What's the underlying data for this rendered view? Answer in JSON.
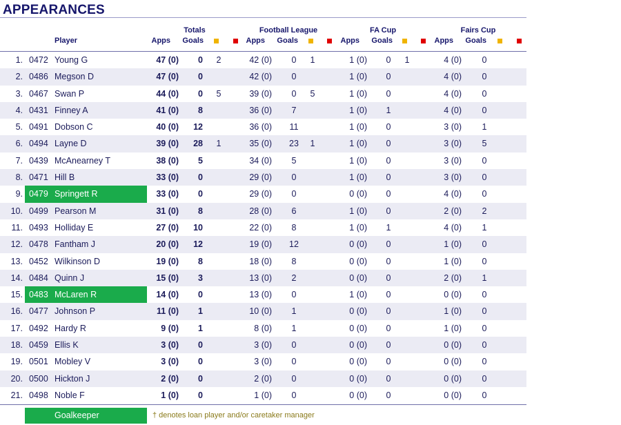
{
  "title": "APPEARANCES",
  "headers": {
    "player": "Player",
    "totals": "Totals",
    "football_league": "Football League",
    "fa_cup": "FA Cup",
    "fairs_cup": "Fairs Cup",
    "apps": "Apps",
    "goals": "Goals"
  },
  "colors": {
    "header_text": "#16166b",
    "yellow_card": "#f0b400",
    "red_card": "#e00000",
    "goalkeeper_highlight": "#1aab4b",
    "alt_row": "#ebebf4"
  },
  "columns": [
    "rank",
    "number",
    "player",
    "total_apps",
    "total_goals",
    "total_yellow",
    "total_red",
    "fl_apps",
    "fl_goals",
    "fl_yellow",
    "fl_red",
    "fac_apps",
    "fac_goals",
    "fac_yellow",
    "fac_red",
    "fc_apps",
    "fc_goals",
    "fc_yellow",
    "fc_red"
  ],
  "rows": [
    {
      "rank": "1.",
      "number": "0472",
      "player": "Young G",
      "goalkeeper": false,
      "total_apps": "47 (0)",
      "total_goals": "0",
      "total_yellow": "2",
      "total_red": "",
      "fl_apps": "42 (0)",
      "fl_goals": "0",
      "fl_yellow": "1",
      "fl_red": "",
      "fac_apps": "1 (0)",
      "fac_goals": "0",
      "fac_yellow": "1",
      "fac_red": "",
      "fc_apps": "4 (0)",
      "fc_goals": "0",
      "fc_yellow": "",
      "fc_red": ""
    },
    {
      "rank": "2.",
      "number": "0486",
      "player": "Megson D",
      "goalkeeper": false,
      "total_apps": "47 (0)",
      "total_goals": "0",
      "total_yellow": "",
      "total_red": "",
      "fl_apps": "42 (0)",
      "fl_goals": "0",
      "fl_yellow": "",
      "fl_red": "",
      "fac_apps": "1 (0)",
      "fac_goals": "0",
      "fac_yellow": "",
      "fac_red": "",
      "fc_apps": "4 (0)",
      "fc_goals": "0",
      "fc_yellow": "",
      "fc_red": ""
    },
    {
      "rank": "3.",
      "number": "0467",
      "player": "Swan P",
      "goalkeeper": false,
      "total_apps": "44 (0)",
      "total_goals": "0",
      "total_yellow": "5",
      "total_red": "",
      "fl_apps": "39 (0)",
      "fl_goals": "0",
      "fl_yellow": "5",
      "fl_red": "",
      "fac_apps": "1 (0)",
      "fac_goals": "0",
      "fac_yellow": "",
      "fac_red": "",
      "fc_apps": "4 (0)",
      "fc_goals": "0",
      "fc_yellow": "",
      "fc_red": ""
    },
    {
      "rank": "4.",
      "number": "0431",
      "player": "Finney A",
      "goalkeeper": false,
      "total_apps": "41 (0)",
      "total_goals": "8",
      "total_yellow": "",
      "total_red": "",
      "fl_apps": "36 (0)",
      "fl_goals": "7",
      "fl_yellow": "",
      "fl_red": "",
      "fac_apps": "1 (0)",
      "fac_goals": "1",
      "fac_yellow": "",
      "fac_red": "",
      "fc_apps": "4 (0)",
      "fc_goals": "0",
      "fc_yellow": "",
      "fc_red": ""
    },
    {
      "rank": "5.",
      "number": "0491",
      "player": "Dobson C",
      "goalkeeper": false,
      "total_apps": "40 (0)",
      "total_goals": "12",
      "total_yellow": "",
      "total_red": "",
      "fl_apps": "36 (0)",
      "fl_goals": "11",
      "fl_yellow": "",
      "fl_red": "",
      "fac_apps": "1 (0)",
      "fac_goals": "0",
      "fac_yellow": "",
      "fac_red": "",
      "fc_apps": "3 (0)",
      "fc_goals": "1",
      "fc_yellow": "",
      "fc_red": ""
    },
    {
      "rank": "6.",
      "number": "0494",
      "player": "Layne D",
      "goalkeeper": false,
      "total_apps": "39 (0)",
      "total_goals": "28",
      "total_yellow": "1",
      "total_red": "",
      "fl_apps": "35 (0)",
      "fl_goals": "23",
      "fl_yellow": "1",
      "fl_red": "",
      "fac_apps": "1 (0)",
      "fac_goals": "0",
      "fac_yellow": "",
      "fac_red": "",
      "fc_apps": "3 (0)",
      "fc_goals": "5",
      "fc_yellow": "",
      "fc_red": ""
    },
    {
      "rank": "7.",
      "number": "0439",
      "player": "McAnearney T",
      "goalkeeper": false,
      "total_apps": "38 (0)",
      "total_goals": "5",
      "total_yellow": "",
      "total_red": "",
      "fl_apps": "34 (0)",
      "fl_goals": "5",
      "fl_yellow": "",
      "fl_red": "",
      "fac_apps": "1 (0)",
      "fac_goals": "0",
      "fac_yellow": "",
      "fac_red": "",
      "fc_apps": "3 (0)",
      "fc_goals": "0",
      "fc_yellow": "",
      "fc_red": ""
    },
    {
      "rank": "8.",
      "number": "0471",
      "player": "Hill B",
      "goalkeeper": false,
      "total_apps": "33 (0)",
      "total_goals": "0",
      "total_yellow": "",
      "total_red": "",
      "fl_apps": "29 (0)",
      "fl_goals": "0",
      "fl_yellow": "",
      "fl_red": "",
      "fac_apps": "1 (0)",
      "fac_goals": "0",
      "fac_yellow": "",
      "fac_red": "",
      "fc_apps": "3 (0)",
      "fc_goals": "0",
      "fc_yellow": "",
      "fc_red": ""
    },
    {
      "rank": "9.",
      "number": "0479",
      "player": "Springett R",
      "goalkeeper": true,
      "total_apps": "33 (0)",
      "total_goals": "0",
      "total_yellow": "",
      "total_red": "",
      "fl_apps": "29 (0)",
      "fl_goals": "0",
      "fl_yellow": "",
      "fl_red": "",
      "fac_apps": "0 (0)",
      "fac_goals": "0",
      "fac_yellow": "",
      "fac_red": "",
      "fc_apps": "4 (0)",
      "fc_goals": "0",
      "fc_yellow": "",
      "fc_red": ""
    },
    {
      "rank": "10.",
      "number": "0499",
      "player": "Pearson M",
      "goalkeeper": false,
      "total_apps": "31 (0)",
      "total_goals": "8",
      "total_yellow": "",
      "total_red": "",
      "fl_apps": "28 (0)",
      "fl_goals": "6",
      "fl_yellow": "",
      "fl_red": "",
      "fac_apps": "1 (0)",
      "fac_goals": "0",
      "fac_yellow": "",
      "fac_red": "",
      "fc_apps": "2 (0)",
      "fc_goals": "2",
      "fc_yellow": "",
      "fc_red": ""
    },
    {
      "rank": "11.",
      "number": "0493",
      "player": "Holliday E",
      "goalkeeper": false,
      "total_apps": "27 (0)",
      "total_goals": "10",
      "total_yellow": "",
      "total_red": "",
      "fl_apps": "22 (0)",
      "fl_goals": "8",
      "fl_yellow": "",
      "fl_red": "",
      "fac_apps": "1 (0)",
      "fac_goals": "1",
      "fac_yellow": "",
      "fac_red": "",
      "fc_apps": "4 (0)",
      "fc_goals": "1",
      "fc_yellow": "",
      "fc_red": ""
    },
    {
      "rank": "12.",
      "number": "0478",
      "player": "Fantham J",
      "goalkeeper": false,
      "total_apps": "20 (0)",
      "total_goals": "12",
      "total_yellow": "",
      "total_red": "",
      "fl_apps": "19 (0)",
      "fl_goals": "12",
      "fl_yellow": "",
      "fl_red": "",
      "fac_apps": "0 (0)",
      "fac_goals": "0",
      "fac_yellow": "",
      "fac_red": "",
      "fc_apps": "1 (0)",
      "fc_goals": "0",
      "fc_yellow": "",
      "fc_red": ""
    },
    {
      "rank": "13.",
      "number": "0452",
      "player": "Wilkinson D",
      "goalkeeper": false,
      "total_apps": "19 (0)",
      "total_goals": "8",
      "total_yellow": "",
      "total_red": "",
      "fl_apps": "18 (0)",
      "fl_goals": "8",
      "fl_yellow": "",
      "fl_red": "",
      "fac_apps": "0 (0)",
      "fac_goals": "0",
      "fac_yellow": "",
      "fac_red": "",
      "fc_apps": "1 (0)",
      "fc_goals": "0",
      "fc_yellow": "",
      "fc_red": ""
    },
    {
      "rank": "14.",
      "number": "0484",
      "player": "Quinn J",
      "goalkeeper": false,
      "total_apps": "15 (0)",
      "total_goals": "3",
      "total_yellow": "",
      "total_red": "",
      "fl_apps": "13 (0)",
      "fl_goals": "2",
      "fl_yellow": "",
      "fl_red": "",
      "fac_apps": "0 (0)",
      "fac_goals": "0",
      "fac_yellow": "",
      "fac_red": "",
      "fc_apps": "2 (0)",
      "fc_goals": "1",
      "fc_yellow": "",
      "fc_red": ""
    },
    {
      "rank": "15.",
      "number": "0483",
      "player": "McLaren R",
      "goalkeeper": true,
      "total_apps": "14 (0)",
      "total_goals": "0",
      "total_yellow": "",
      "total_red": "",
      "fl_apps": "13 (0)",
      "fl_goals": "0",
      "fl_yellow": "",
      "fl_red": "",
      "fac_apps": "1 (0)",
      "fac_goals": "0",
      "fac_yellow": "",
      "fac_red": "",
      "fc_apps": "0 (0)",
      "fc_goals": "0",
      "fc_yellow": "",
      "fc_red": ""
    },
    {
      "rank": "16.",
      "number": "0477",
      "player": "Johnson P",
      "goalkeeper": false,
      "total_apps": "11 (0)",
      "total_goals": "1",
      "total_yellow": "",
      "total_red": "",
      "fl_apps": "10 (0)",
      "fl_goals": "1",
      "fl_yellow": "",
      "fl_red": "",
      "fac_apps": "0 (0)",
      "fac_goals": "0",
      "fac_yellow": "",
      "fac_red": "",
      "fc_apps": "1 (0)",
      "fc_goals": "0",
      "fc_yellow": "",
      "fc_red": ""
    },
    {
      "rank": "17.",
      "number": "0492",
      "player": "Hardy R",
      "goalkeeper": false,
      "total_apps": "9 (0)",
      "total_goals": "1",
      "total_yellow": "",
      "total_red": "",
      "fl_apps": "8 (0)",
      "fl_goals": "1",
      "fl_yellow": "",
      "fl_red": "",
      "fac_apps": "0 (0)",
      "fac_goals": "0",
      "fac_yellow": "",
      "fac_red": "",
      "fc_apps": "1 (0)",
      "fc_goals": "0",
      "fc_yellow": "",
      "fc_red": ""
    },
    {
      "rank": "18.",
      "number": "0459",
      "player": "Ellis K",
      "goalkeeper": false,
      "total_apps": "3 (0)",
      "total_goals": "0",
      "total_yellow": "",
      "total_red": "",
      "fl_apps": "3 (0)",
      "fl_goals": "0",
      "fl_yellow": "",
      "fl_red": "",
      "fac_apps": "0 (0)",
      "fac_goals": "0",
      "fac_yellow": "",
      "fac_red": "",
      "fc_apps": "0 (0)",
      "fc_goals": "0",
      "fc_yellow": "",
      "fc_red": ""
    },
    {
      "rank": "19.",
      "number": "0501",
      "player": "Mobley V",
      "goalkeeper": false,
      "total_apps": "3 (0)",
      "total_goals": "0",
      "total_yellow": "",
      "total_red": "",
      "fl_apps": "3 (0)",
      "fl_goals": "0",
      "fl_yellow": "",
      "fl_red": "",
      "fac_apps": "0 (0)",
      "fac_goals": "0",
      "fac_yellow": "",
      "fac_red": "",
      "fc_apps": "0 (0)",
      "fc_goals": "0",
      "fc_yellow": "",
      "fc_red": ""
    },
    {
      "rank": "20.",
      "number": "0500",
      "player": "Hickton J",
      "goalkeeper": false,
      "total_apps": "2 (0)",
      "total_goals": "0",
      "total_yellow": "",
      "total_red": "",
      "fl_apps": "2 (0)",
      "fl_goals": "0",
      "fl_yellow": "",
      "fl_red": "",
      "fac_apps": "0 (0)",
      "fac_goals": "0",
      "fac_yellow": "",
      "fac_red": "",
      "fc_apps": "0 (0)",
      "fc_goals": "0",
      "fc_yellow": "",
      "fc_red": ""
    },
    {
      "rank": "21.",
      "number": "0498",
      "player": "Noble F",
      "goalkeeper": false,
      "total_apps": "1 (0)",
      "total_goals": "0",
      "total_yellow": "",
      "total_red": "",
      "fl_apps": "1 (0)",
      "fl_goals": "0",
      "fl_yellow": "",
      "fl_red": "",
      "fac_apps": "0 (0)",
      "fac_goals": "0",
      "fac_yellow": "",
      "fac_red": "",
      "fc_apps": "0 (0)",
      "fc_goals": "0",
      "fc_yellow": "",
      "fc_red": ""
    }
  ],
  "legend": {
    "goalkeeper": "Goalkeeper",
    "note": "† denotes loan player and/or caretaker manager"
  }
}
